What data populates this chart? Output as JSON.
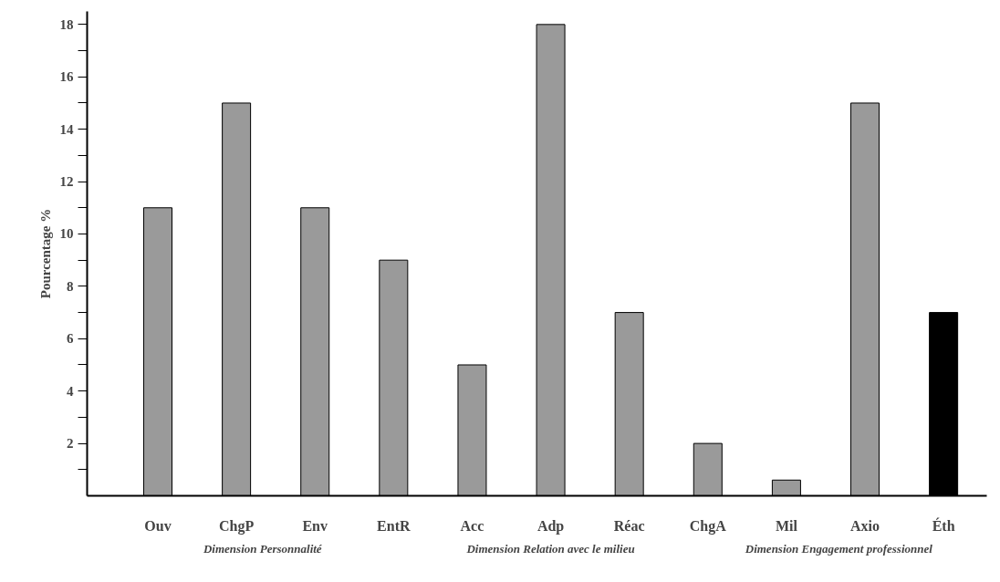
{
  "chart_data": {
    "type": "bar",
    "ylabel": "Pourcentage %",
    "categories": [
      "Ouv",
      "ChgP",
      "Env",
      "EntR",
      "Acc",
      "Adp",
      "Réac",
      "ChgA",
      "Mil",
      "Axio",
      "Éth"
    ],
    "values": [
      11,
      15,
      11,
      9,
      5,
      18,
      7,
      2,
      0.6,
      15,
      7
    ],
    "colors": [
      "#9a9a9a",
      "#9a9a9a",
      "#9a9a9a",
      "#9a9a9a",
      "#9a9a9a",
      "#9a9a9a",
      "#9a9a9a",
      "#9a9a9a",
      "#9a9a9a",
      "#9a9a9a",
      "#000000"
    ],
    "ylim": [
      0,
      18.5
    ],
    "yticks": [
      2,
      4,
      6,
      8,
      10,
      12,
      14,
      16,
      18
    ],
    "grid": false,
    "annotations": [
      "Dimension Personnalité",
      "Dimension Relation avec le milieu",
      "Dimension Engagement professionnel"
    ]
  }
}
